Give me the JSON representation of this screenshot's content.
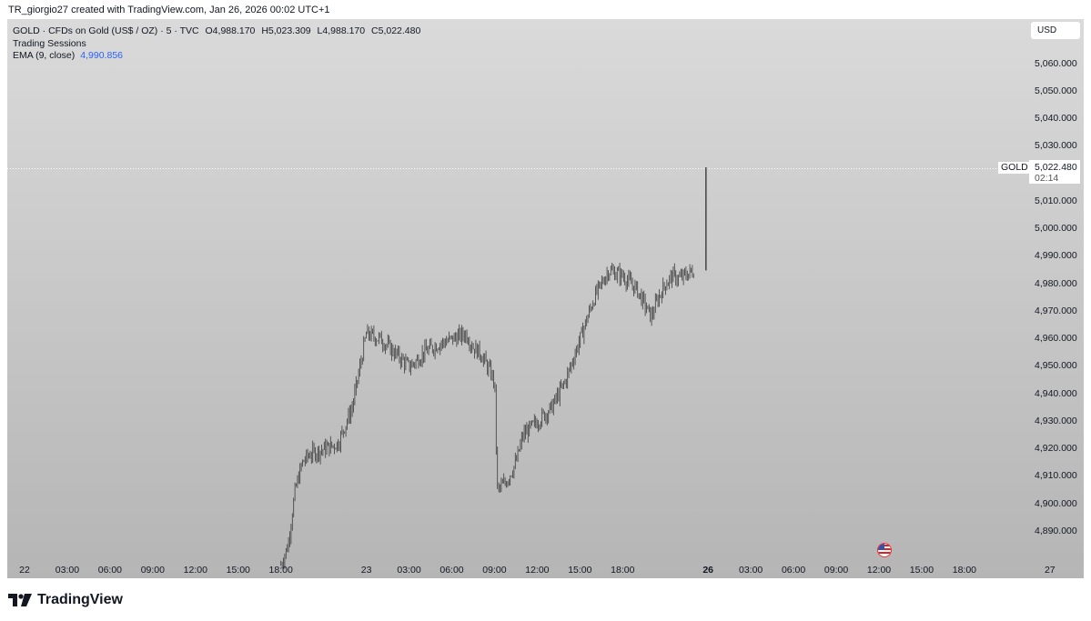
{
  "header": {
    "credit": "TR_giorgio27 created with TradingView.com, Jan 26, 2026 00:02 UTC+1"
  },
  "legend": {
    "symbol_line": "GOLD · CFDs on Gold (US$ / OZ) · 5 · TVC",
    "open": "O4,988.170",
    "high": "H5,023.309",
    "low": "L4,988.170",
    "close": "C5,022.480",
    "sessions": "Trading Sessions",
    "ema_label": "EMA (9, close)",
    "ema_value": "4,990.856"
  },
  "currency_button": "USD",
  "last_price": {
    "symbol": "GOLD",
    "price": "5,022.480",
    "countdown": "02:14"
  },
  "footer": {
    "brand": "TradingView"
  },
  "icons": {
    "event_flag": "us-flag-icon",
    "brand_logo": "tradingview-logo-icon"
  },
  "colors": {
    "candle": "#3a3a3a",
    "ema": "#2962ff",
    "grid_line": "#ffffff"
  },
  "chart_data": {
    "type": "line",
    "title": "GOLD · CFDs on Gold (US$ / OZ) · 5 · TVC",
    "xlabel": "",
    "ylabel": "",
    "ylim": [
      4880,
      5068
    ],
    "y_ticks": [
      "5,060.000",
      "5,050.000",
      "5,040.000",
      "5,030.000",
      "5,020.000",
      "5,010.000",
      "5,000.000",
      "4,990.000",
      "4,980.000",
      "4,970.000",
      "4,960.000",
      "4,950.000",
      "4,940.000",
      "4,930.000",
      "4,920.000",
      "4,910.000",
      "4,900.000",
      "4,890.000"
    ],
    "y_tick_values": [
      5060,
      5050,
      5040,
      5030,
      5020,
      5010,
      5000,
      4990,
      4980,
      4970,
      4960,
      4950,
      4940,
      4930,
      4920,
      4910,
      4900,
      4890
    ],
    "x_ticks": [
      "22",
      "03:00",
      "06:00",
      "09:00",
      "12:00",
      "15:00",
      "18:00",
      "23",
      "03:00",
      "06:00",
      "09:00",
      "12:00",
      "15:00",
      "18:00",
      "26",
      "03:00",
      "06:00",
      "09:00",
      "12:00",
      "15:00",
      "18:00",
      "27"
    ],
    "x_tick_hours": [
      0,
      3,
      6,
      9,
      12,
      15,
      18,
      24,
      27,
      30,
      33,
      36,
      39,
      42,
      48,
      51,
      54,
      57,
      60,
      63,
      66,
      72
    ],
    "series": [
      {
        "x_hours": [
          18,
          18.5,
          19,
          19.5,
          20,
          21,
          22,
          23,
          24,
          25,
          26,
          27,
          27.5,
          28,
          29,
          30,
          31,
          31.5,
          32,
          33,
          33.2,
          33.8,
          34.5,
          35,
          36,
          37,
          38,
          39,
          40,
          41,
          42,
          43,
          44,
          44.5,
          45,
          45.5,
          46,
          47,
          48
        ],
        "values": [
          4878,
          4885,
          4905,
          4915,
          4918,
          4920,
          4922,
          4935,
          4962,
          4960,
          4955,
          4950,
          4952,
          4955,
          4958,
          4960,
          4962,
          4957,
          4955,
          4945,
          4905,
          4908,
          4915,
          4925,
          4930,
          4935,
          4945,
          4960,
          4975,
          4985,
          4983,
          4978,
          4968,
          4975,
          4980,
          4983,
          4982,
          4985,
          5022
        ]
      }
    ],
    "events": [
      {
        "x_hours": 62.5,
        "icon": "us-flag-icon"
      }
    ],
    "grid": false,
    "legend_position": "top-left"
  }
}
